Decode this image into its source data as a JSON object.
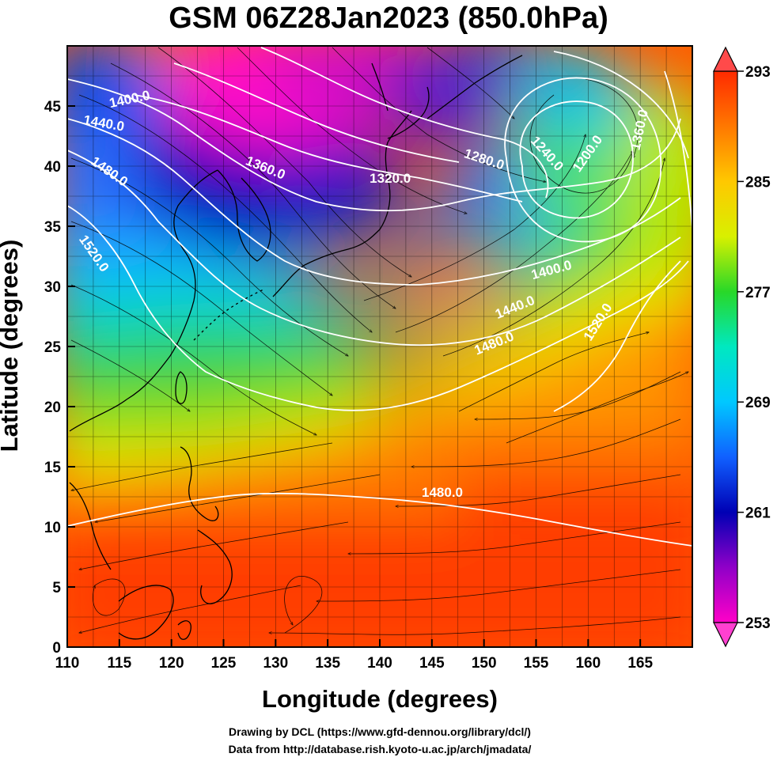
{
  "title": "GSM 06Z28Jan2023 (850.0hPa)",
  "xlabel": "Longitude (degrees)",
  "ylabel": "Latitude  (degrees)",
  "credits": [
    "Drawing by DCL (https://www.gfd-dennou.org/library/dcl/)",
    "Data from http://database.rish.kyoto-u.ac.jp/arch/jmadata/"
  ],
  "map": {
    "lon_range": [
      110,
      170
    ],
    "lat_range": [
      0,
      50
    ],
    "lon_ticks": [
      "110",
      "115",
      "120",
      "125",
      "130",
      "135",
      "140",
      "145",
      "150",
      "155",
      "160",
      "165"
    ],
    "lat_ticks": [
      "0",
      "5",
      "10",
      "15",
      "20",
      "25",
      "30",
      "35",
      "40",
      "45"
    ],
    "grid": true
  },
  "colorbar": {
    "range": [
      253,
      293
    ],
    "tick_labels": [
      "293",
      "285",
      "277",
      "269",
      "261",
      "253"
    ],
    "colors": [
      "#ff00c8",
      "#9000c8",
      "#0000b4",
      "#1060ff",
      "#00c8ff",
      "#00e8c0",
      "#28d828",
      "#d8f000",
      "#ffc800",
      "#ff7800",
      "#ff2a00"
    ]
  },
  "contour_labels": [
    {
      "text": "1400.0",
      "lon": 116,
      "lat": 45.5,
      "angle": -12
    },
    {
      "text": "1440.0",
      "lon": 113.5,
      "lat": 43.5,
      "angle": 10
    },
    {
      "text": "1480.0",
      "lon": 114,
      "lat": 39.5,
      "angle": 35
    },
    {
      "text": "1520.0",
      "lon": 112.5,
      "lat": 32.7,
      "angle": 55
    },
    {
      "text": "1360.0",
      "lon": 129,
      "lat": 39.8,
      "angle": 22
    },
    {
      "text": "1320.0",
      "lon": 141,
      "lat": 38.9,
      "angle": 0
    },
    {
      "text": "1280.0",
      "lon": 150,
      "lat": 40.5,
      "angle": 18
    },
    {
      "text": "1240.0",
      "lon": 156,
      "lat": 41,
      "angle": 48
    },
    {
      "text": "1200.0",
      "lon": 160,
      "lat": 41,
      "angle": -55
    },
    {
      "text": "1360.0",
      "lon": 165,
      "lat": 43,
      "angle": -78
    },
    {
      "text": "1400.0",
      "lon": 156.5,
      "lat": 31.3,
      "angle": -15
    },
    {
      "text": "1440.0",
      "lon": 153,
      "lat": 28.2,
      "angle": -22
    },
    {
      "text": "1480.0",
      "lon": 151,
      "lat": 25.2,
      "angle": -22
    },
    {
      "text": "1520.0",
      "lon": 161,
      "lat": 27,
      "angle": -58
    },
    {
      "text": "1480.0",
      "lon": 146,
      "lat": 12.8,
      "angle": 0
    }
  ]
}
